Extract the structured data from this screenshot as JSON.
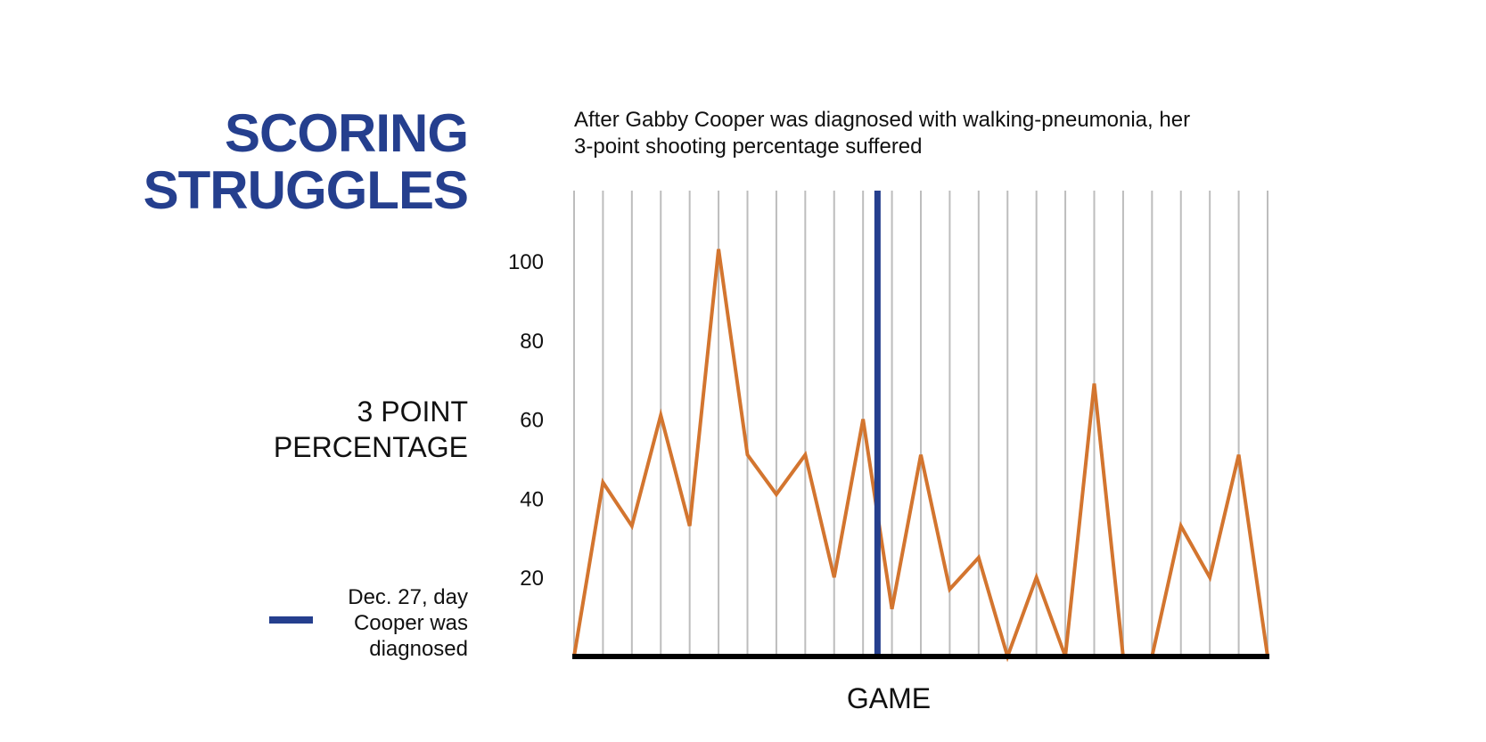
{
  "chart_data": {
    "type": "line",
    "title": [
      "SCORING",
      "STRUGGLES"
    ],
    "subtitle": [
      "After Gabby Cooper was diagnosed with walking-pneumonia, her",
      "3-point shooting percentage suffered"
    ],
    "xlabel": "GAME",
    "ylabel": [
      "3 POINT",
      "PERCENTAGE"
    ],
    "ylim": [
      0,
      115
    ],
    "yticks": [
      20,
      40,
      60,
      80,
      100
    ],
    "ytick_labels": [
      "20",
      "40",
      "60",
      "80",
      "100"
    ],
    "x": [
      1,
      2,
      3,
      4,
      5,
      6,
      7,
      8,
      9,
      10,
      11,
      12,
      13,
      14,
      15,
      16,
      17,
      18,
      19,
      20,
      21,
      22,
      23,
      24,
      25
    ],
    "series": [
      {
        "name": "3-point percentage",
        "color": "#d3752f",
        "values": [
          0,
          44,
          33,
          61,
          33,
          103,
          51,
          41,
          51,
          20,
          60,
          12,
          51,
          17,
          25,
          0,
          20,
          0,
          69,
          0,
          0,
          33,
          20,
          51,
          0
        ]
      }
    ],
    "diagnosis_marker": {
      "x": 11.5,
      "color": "#253f8e",
      "legend_label": [
        "Dec. 27, day",
        "Cooper was",
        "diagnosed"
      ]
    },
    "grid": true
  }
}
